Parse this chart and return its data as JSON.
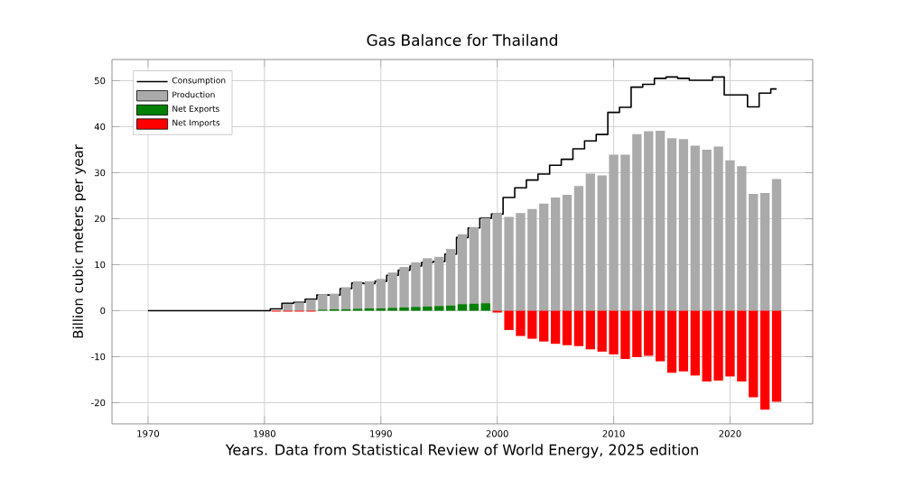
{
  "chart_data": {
    "type": "bar",
    "title": "Gas Balance for Thailand",
    "xlabel": "Years. Data from Statistical Review of World Energy, 2025 edition",
    "ylabel": "Billion cubic meters per year",
    "xlim": [
      1966.9,
      2027.1
    ],
    "ylim": [
      -24.6,
      54.6
    ],
    "xticks": [
      1970,
      1980,
      1990,
      2000,
      2010,
      2020
    ],
    "yticks": [
      -20,
      -10,
      0,
      10,
      20,
      30,
      40,
      50
    ],
    "grid": true,
    "legend": "top left",
    "series": [
      {
        "name": "Consumption",
        "type": "step",
        "color": "#000000",
        "x": [
          1970,
          1971,
          1972,
          1973,
          1974,
          1975,
          1976,
          1977,
          1978,
          1979,
          1980,
          1981,
          1982,
          1983,
          1984,
          1985,
          1986,
          1987,
          1988,
          1989,
          1990,
          1991,
          1992,
          1993,
          1994,
          1995,
          1996,
          1997,
          1998,
          1999,
          2000,
          2001,
          2002,
          2003,
          2004,
          2005,
          2006,
          2007,
          2008,
          2009,
          2010,
          2011,
          2012,
          2013,
          2014,
          2015,
          2016,
          2017,
          2018,
          2019,
          2020,
          2021,
          2022,
          2023,
          2024
        ],
        "values": [
          0,
          0,
          0,
          0,
          0,
          0,
          0,
          0,
          0,
          0,
          0,
          0.4,
          1.6,
          1.8,
          2.5,
          3.4,
          3.4,
          4.8,
          6.0,
          5.9,
          6.4,
          7.7,
          8.8,
          9.7,
          10.5,
          10.7,
          12.3,
          15.9,
          18.0,
          20.1,
          21.0,
          24.6,
          26.7,
          28.4,
          29.7,
          31.6,
          32.9,
          35.2,
          36.9,
          38.3,
          43.1,
          44.2,
          48.6,
          49.2,
          50.5,
          50.8,
          50.5,
          50.1,
          50.1,
          50.8,
          46.9,
          46.9,
          44.3,
          47.3,
          48.2
        ]
      },
      {
        "name": "Production",
        "color": "#aaaaaa",
        "x": [
          1982,
          1983,
          1984,
          1985,
          1986,
          1987,
          1988,
          1989,
          1990,
          1991,
          1992,
          1993,
          1994,
          1995,
          1996,
          1997,
          1998,
          1999,
          2000,
          2001,
          2002,
          2003,
          2004,
          2005,
          2006,
          2007,
          2008,
          2009,
          2010,
          2011,
          2012,
          2013,
          2014,
          2015,
          2016,
          2017,
          2018,
          2019,
          2020,
          2021,
          2022,
          2023,
          2024
        ],
        "values": [
          1.5,
          1.8,
          2.4,
          3.6,
          3.7,
          5.1,
          6.4,
          6.4,
          6.9,
          8.3,
          9.5,
          10.5,
          11.4,
          11.7,
          13.4,
          16.6,
          18.2,
          20.1,
          21.2,
          20.4,
          21.2,
          22.1,
          23.3,
          24.6,
          25.2,
          27.1,
          29.8,
          29.4,
          33.9,
          33.9,
          38.4,
          39.0,
          39.1,
          37.5,
          37.3,
          35.9,
          35.0,
          35.7,
          32.7,
          31.4,
          25.4,
          25.6,
          28.6
        ]
      },
      {
        "name": "Net Exports",
        "color": "#008000",
        "x": [
          1985,
          1986,
          1987,
          1988,
          1989,
          1990,
          1991,
          1992,
          1993,
          1994,
          1995,
          1996,
          1997,
          1998,
          1999
        ],
        "values": [
          0.2,
          0.3,
          0.3,
          0.4,
          0.5,
          0.5,
          0.6,
          0.7,
          0.8,
          0.9,
          1.0,
          1.1,
          1.4,
          1.5,
          1.6
        ]
      },
      {
        "name": "Net Imports",
        "color": "#ff0000",
        "x": [
          1981,
          1982,
          1983,
          1984,
          2000,
          2001,
          2002,
          2003,
          2004,
          2005,
          2006,
          2007,
          2008,
          2009,
          2010,
          2011,
          2012,
          2013,
          2014,
          2015,
          2016,
          2017,
          2018,
          2019,
          2020,
          2021,
          2022,
          2023,
          2024
        ],
        "values": [
          -0.2,
          -0.2,
          -0.2,
          -0.2,
          -0.4,
          -4.2,
          -5.5,
          -6.1,
          -6.7,
          -7.2,
          -7.5,
          -7.7,
          -8.4,
          -8.9,
          -9.5,
          -10.5,
          -10.1,
          -9.8,
          -11.0,
          -13.5,
          -13.2,
          -14.1,
          -15.4,
          -15.2,
          -14.3,
          -15.4,
          -18.8,
          -21.5,
          -19.8
        ]
      }
    ]
  }
}
